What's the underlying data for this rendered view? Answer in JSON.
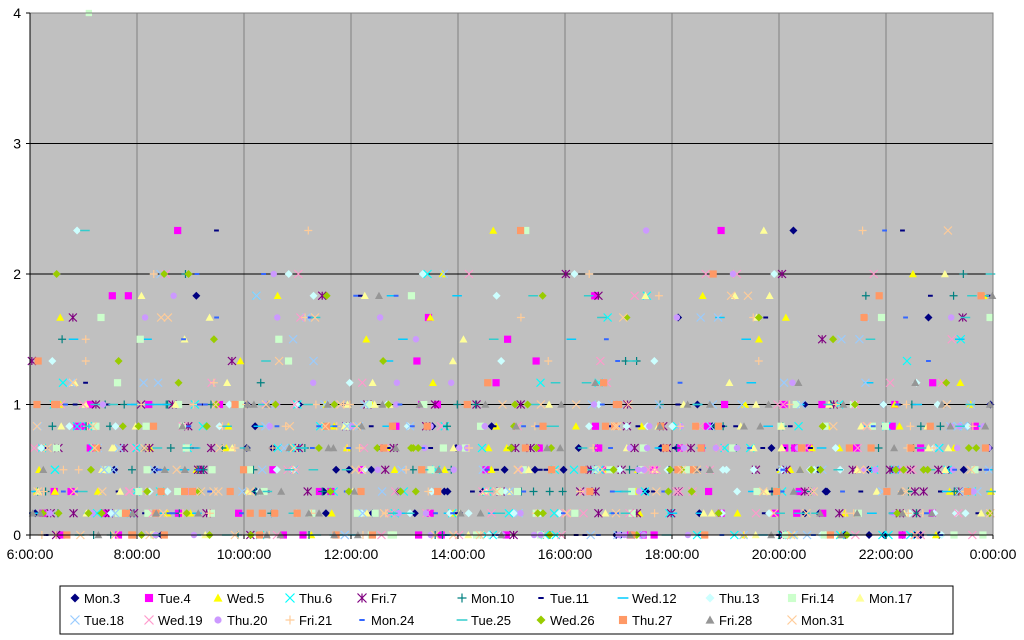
{
  "chart_data": {
    "type": "scatter",
    "title": "",
    "xlabel": "",
    "ylabel": "",
    "x_ticks": [
      "6:00:00",
      "8:00:00",
      "10:00:00",
      "12:00:00",
      "14:00:00",
      "16:00:00",
      "18:00:00",
      "20:00:00",
      "22:00:00",
      "0:00:00"
    ],
    "y_ticks": [
      "0",
      "1",
      "2",
      "3",
      "4"
    ],
    "xlim_hours": [
      6,
      24
    ],
    "ylim": [
      0,
      4
    ],
    "grid": "horizontal and vertical",
    "plot_background": "#c0c0c0",
    "legend_position": "bottom",
    "levels": [
      0,
      0.1667,
      0.3333,
      0.5,
      0.6667,
      0.8333,
      1,
      1.1667,
      1.3333,
      1.5,
      1.6667,
      1.8333,
      2,
      2.3333,
      4
    ],
    "series": [
      {
        "name": "Mon.3",
        "marker": "diamond",
        "color": "#000080"
      },
      {
        "name": "Tue.4",
        "marker": "square",
        "color": "#ff00ff"
      },
      {
        "name": "Wed.5",
        "marker": "triangle",
        "color": "#ffff00"
      },
      {
        "name": "Thu.6",
        "marker": "x",
        "color": "#00ffff"
      },
      {
        "name": "Fri.7",
        "marker": "star",
        "color": "#800080"
      },
      {
        "name": "Mon.10",
        "marker": "plus",
        "color": "#008080"
      },
      {
        "name": "Tue.11",
        "marker": "short-dash",
        "color": "#000080"
      },
      {
        "name": "Wed.12",
        "marker": "long-dash",
        "color": "#00ccff"
      },
      {
        "name": "Thu.13",
        "marker": "diamond",
        "color": "#ccffff"
      },
      {
        "name": "Fri.14",
        "marker": "square",
        "color": "#ccffcc"
      },
      {
        "name": "Mon.17",
        "marker": "triangle",
        "color": "#ffff99"
      },
      {
        "name": "Tue.18",
        "marker": "x",
        "color": "#99ccff"
      },
      {
        "name": "Wed.19",
        "marker": "x",
        "color": "#ff99cc"
      },
      {
        "name": "Thu.20",
        "marker": "circle",
        "color": "#cc99ff"
      },
      {
        "name": "Fri.21",
        "marker": "plus",
        "color": "#ffcc99"
      },
      {
        "name": "Mon.24",
        "marker": "short-dash",
        "color": "#3366ff"
      },
      {
        "name": "Tue.25",
        "marker": "long-dash",
        "color": "#33cccc"
      },
      {
        "name": "Wed.26",
        "marker": "diamond",
        "color": "#99cc00"
      },
      {
        "name": "Thu.27",
        "marker": "square",
        "color": "#ff9966"
      },
      {
        "name": "Fri.28",
        "marker": "triangle",
        "color": "#969696"
      },
      {
        "name": "Mon.31",
        "marker": "x",
        "color": "#ffcc99"
      }
    ]
  }
}
